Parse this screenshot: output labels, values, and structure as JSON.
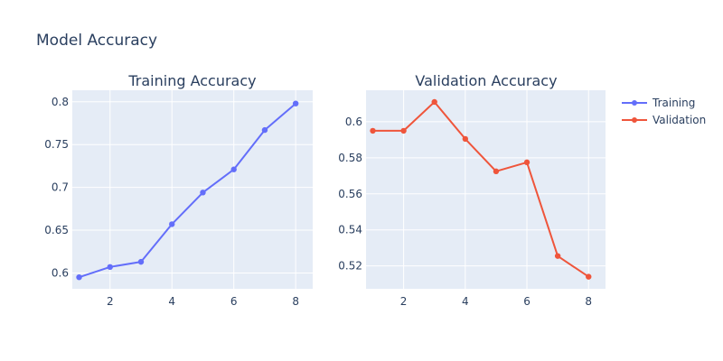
{
  "figure_title": "Model Accuracy",
  "chart_data": [
    {
      "type": "line",
      "title": "Training Accuracy",
      "x": [
        1,
        2,
        3,
        4,
        5,
        6,
        7,
        8
      ],
      "series": [
        {
          "name": "Training",
          "color": "#636efa",
          "values": [
            0.595,
            0.607,
            0.613,
            0.657,
            0.694,
            0.721,
            0.767,
            0.798
          ]
        }
      ],
      "xlim": [
        0.78,
        8.55
      ],
      "ylim": [
        0.5815,
        0.8135
      ],
      "xticks": [
        2,
        4,
        6,
        8
      ],
      "yticks": [
        0.6,
        0.65,
        0.7,
        0.75,
        0.8
      ],
      "ytick_labels": [
        "0.6",
        "0.65",
        "0.7",
        "0.75",
        "0.8"
      ],
      "grid": true
    },
    {
      "type": "line",
      "title": "Validation Accuracy",
      "x": [
        1,
        2,
        3,
        4,
        5,
        6,
        7,
        8
      ],
      "series": [
        {
          "name": "Validation",
          "color": "#ef553b",
          "values": [
            0.595,
            0.595,
            0.611,
            0.5905,
            0.5725,
            0.5775,
            0.5255,
            0.514
          ]
        }
      ],
      "xlim": [
        0.78,
        8.55
      ],
      "ylim": [
        0.5073,
        0.6175
      ],
      "xticks": [
        2,
        4,
        6,
        8
      ],
      "yticks": [
        0.52,
        0.54,
        0.56,
        0.58,
        0.6
      ],
      "ytick_labels": [
        "0.52",
        "0.54",
        "0.56",
        "0.58",
        "0.6"
      ],
      "grid": true
    }
  ],
  "legend": {
    "placement": "top-right",
    "items": [
      {
        "label": "Training",
        "color": "#636efa"
      },
      {
        "label": "Validation",
        "color": "#ef553b"
      }
    ]
  },
  "colors": {
    "plot_bg": "#e5ecf6",
    "grid": "#ffffff",
    "text": "#2a3f5f"
  }
}
